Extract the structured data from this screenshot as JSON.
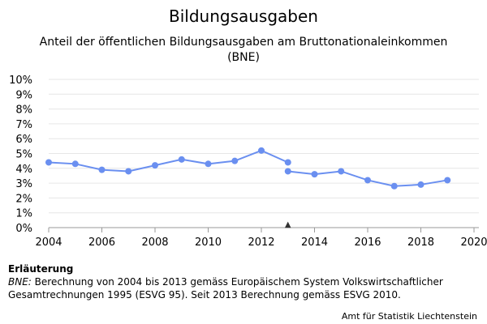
{
  "chart_data": {
    "type": "line",
    "title": "Bildungsausgaben",
    "subtitle": "Anteil der öffentlichen Bildungsausgaben am Bruttonationaleinkommen (BNE)",
    "xlim": [
      2004,
      2020
    ],
    "ylim": [
      0,
      10
    ],
    "x_ticks": [
      2004,
      2006,
      2008,
      2010,
      2012,
      2014,
      2016,
      2018,
      2020
    ],
    "x_tick_labels": [
      "2004",
      "2006",
      "2008",
      "2010",
      "2012",
      "2014",
      "2016",
      "2018",
      "2020"
    ],
    "y_ticks": [
      0,
      1,
      2,
      3,
      4,
      5,
      6,
      7,
      8,
      9,
      10
    ],
    "y_tick_labels": [
      "0%",
      "1%",
      "2%",
      "3%",
      "4%",
      "5%",
      "6%",
      "7%",
      "8%",
      "9%",
      "10%"
    ],
    "grid": true,
    "series_color": "#6a8ff0",
    "series": [
      {
        "x": [
          2004,
          2005,
          2006,
          2007,
          2008,
          2009,
          2010,
          2011,
          2012,
          2013
        ],
        "y": [
          4.4,
          4.3,
          3.9,
          3.8,
          4.2,
          4.6,
          4.3,
          4.5,
          5.2,
          4.4
        ]
      },
      {
        "x": [
          2013,
          2014,
          2015,
          2016,
          2017,
          2018,
          2019
        ],
        "y": [
          3.8,
          3.6,
          3.8,
          3.2,
          2.8,
          2.9,
          3.2
        ]
      }
    ],
    "break_marker": {
      "x": 2013,
      "symbol": "▲"
    }
  },
  "note": {
    "heading": "Erläuterung",
    "term": "BNE:",
    "text": " Berechnung von 2004 bis 2013 gemäss Europäischem System Volkswirtschaftlicher Gesamtrechnungen 1995 (ESVG 95). Seit 2013 Berechnung gemäss ESVG 2010."
  },
  "source": "Amt für Statistik Liechtenstein"
}
